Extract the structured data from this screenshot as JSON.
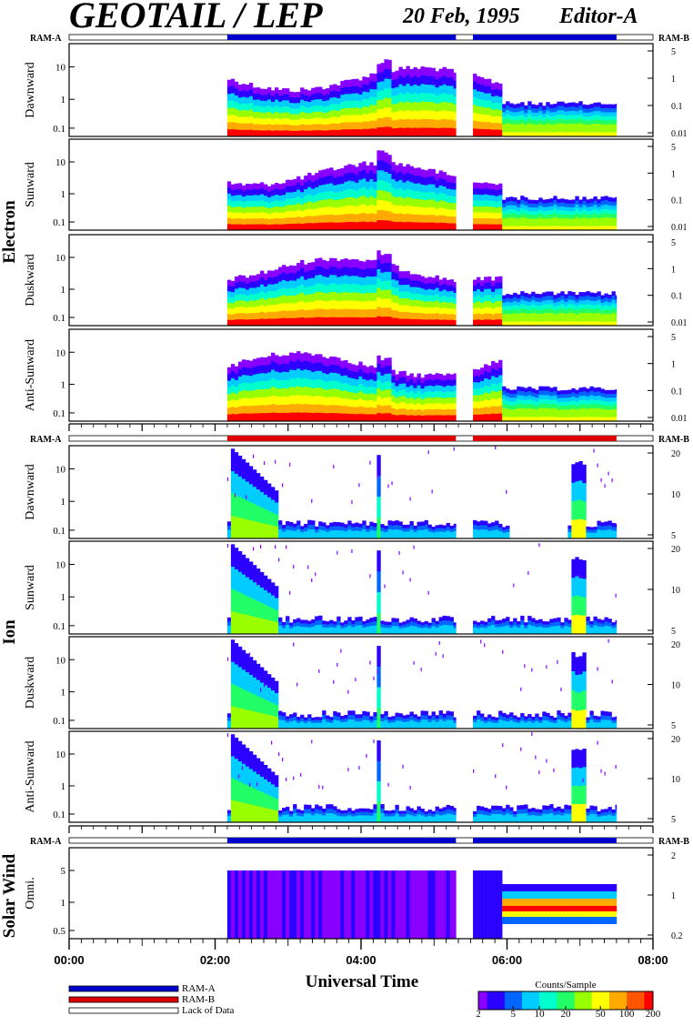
{
  "header": {
    "title": "GEOTAIL / LEP",
    "date": "20 Feb, 1995",
    "editor": "Editor-A"
  },
  "colors": {
    "ram_a": "#0000cc",
    "ram_b": "#dd0000",
    "lack": "#ffffff",
    "palette": [
      "#8800ff",
      "#2a00ff",
      "#0066ff",
      "#00ccff",
      "#00ffcc",
      "#22ff66",
      "#99ff00",
      "#ffff00",
      "#ffaa00",
      "#ff5500",
      "#ff0000"
    ]
  },
  "chart_data": {
    "type": "heatmap",
    "xlabel": "Universal Time",
    "x_range": [
      "00:00",
      "08:00"
    ],
    "x_ticks": [
      "00:00",
      "02:00",
      "04:00",
      "06:00",
      "08:00"
    ],
    "data_coverage": [
      {
        "mode": "RAM-A",
        "start": "00:00",
        "end": "02:10",
        "has_data": false
      },
      {
        "mode": "RAM-A",
        "start": "02:10",
        "end": "05:18",
        "has_data": true
      },
      {
        "mode": "gap",
        "start": "05:18",
        "end": "05:32",
        "has_data": false
      },
      {
        "mode": "RAM-B",
        "start": "05:32",
        "end": "07:30",
        "has_data": true
      },
      {
        "mode": "none",
        "start": "07:30",
        "end": "08:00",
        "has_data": false
      }
    ],
    "groups": [
      {
        "name": "Electron",
        "mode_labels": {
          "left": "RAM-A",
          "right": "RAM-B"
        },
        "panels": [
          {
            "name": "Dawnward",
            "left_ticks": [
              "10",
              "1",
              "0.1"
            ],
            "right_ticks": [
              "5",
              "1",
              "0.1",
              "0.01"
            ]
          },
          {
            "name": "Sunward",
            "left_ticks": [
              "10",
              "1",
              "0.1"
            ],
            "right_ticks": [
              "5",
              "1",
              "0.1",
              "0.01"
            ]
          },
          {
            "name": "Duskward",
            "left_ticks": [
              "10",
              "1",
              "0.1"
            ],
            "right_ticks": [
              "5",
              "1",
              "0.1",
              "0.01"
            ]
          },
          {
            "name": "Anti-Sunward",
            "left_ticks": [
              "10",
              "1",
              "0.1"
            ],
            "right_ticks": [
              "5",
              "1",
              "0.1",
              "0.01"
            ]
          }
        ]
      },
      {
        "name": "Ion",
        "mode_labels": {
          "left": "RAM-A",
          "right": "RAM-B"
        },
        "panels": [
          {
            "name": "Dawnward",
            "left_ticks": [
              "10",
              "1",
              "0.1"
            ],
            "right_ticks": [
              "20",
              "10",
              "5"
            ]
          },
          {
            "name": "Sunward",
            "left_ticks": [
              "10",
              "1",
              "0.1"
            ],
            "right_ticks": [
              "20",
              "10",
              "5"
            ]
          },
          {
            "name": "Duskward",
            "left_ticks": [
              "10",
              "1",
              "0.1"
            ],
            "right_ticks": [
              "20",
              "10",
              "5"
            ]
          },
          {
            "name": "Anti-Sunward",
            "left_ticks": [
              "10",
              "1",
              "0.1"
            ],
            "right_ticks": [
              "20",
              "10",
              "5"
            ]
          }
        ]
      },
      {
        "name": "Solar Wind",
        "mode_labels": {
          "left": "RAM-A",
          "right": "RAM-B"
        },
        "panels": [
          {
            "name": "Omni.",
            "left_ticks": [
              "5",
              "1",
              "0.5"
            ],
            "right_ticks": [
              "2",
              "1",
              "0.2"
            ]
          }
        ]
      }
    ],
    "legend": [
      {
        "label": "RAM-A",
        "color": "#0000cc"
      },
      {
        "label": "RAM-B",
        "color": "#dd0000"
      },
      {
        "label": "Lack of Data",
        "color": "#ffffff"
      }
    ],
    "colorbar": {
      "title": "Counts/Sample",
      "ticks": [
        "2",
        "5",
        "10",
        "20",
        "50",
        "100",
        "200"
      ],
      "scale": "log"
    }
  }
}
